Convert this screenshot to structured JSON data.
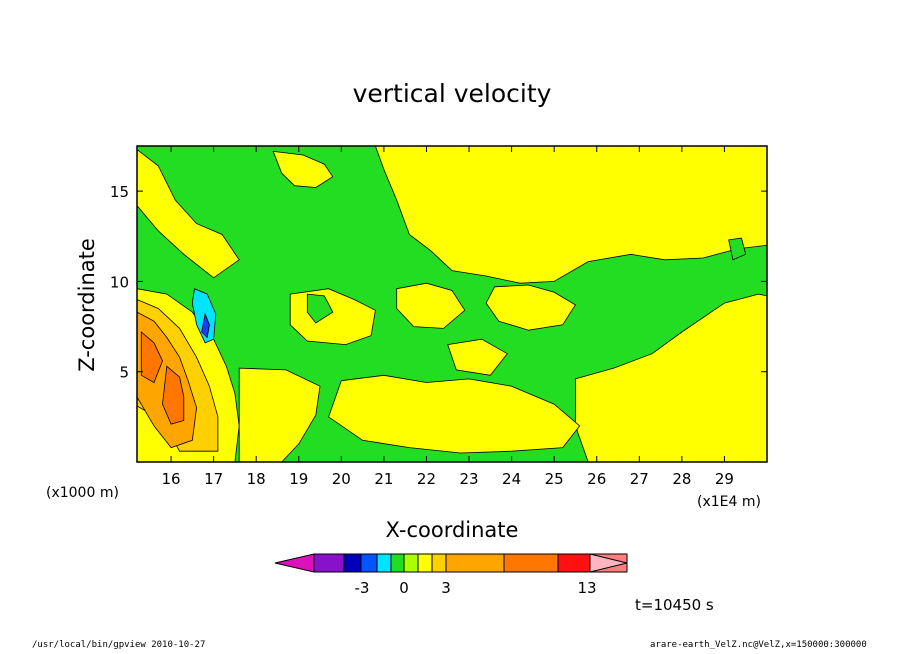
{
  "chart_data": {
    "type": "heatmap",
    "title": "vertical velocity",
    "xlabel": "X-coordinate",
    "ylabel": "Z-coordinate",
    "x_unit_left": "(x1000 m)",
    "x_unit_right": "(x1E4 m)",
    "xlim": [
      15.2,
      30.0
    ],
    "ylim": [
      0,
      17.5
    ],
    "x_ticks": [
      "16",
      "17",
      "18",
      "19",
      "20",
      "21",
      "22",
      "23",
      "24",
      "25",
      "26",
      "27",
      "28",
      "29"
    ],
    "x_tick_values": [
      16,
      17,
      18,
      19,
      20,
      21,
      22,
      23,
      24,
      25,
      26,
      27,
      28,
      29
    ],
    "y_ticks": [
      "5",
      "10",
      "15"
    ],
    "y_tick_values": [
      5,
      10,
      15
    ],
    "background_level_color": "#22dd22",
    "regions": [
      {
        "kind": "positive",
        "color": "#ffff00",
        "points": [
          [
            18.4,
            17.2
          ],
          [
            19.1,
            17.0
          ],
          [
            19.6,
            16.5
          ],
          [
            19.8,
            15.8
          ],
          [
            19.4,
            15.2
          ],
          [
            18.9,
            15.3
          ],
          [
            18.6,
            16.0
          ]
        ]
      },
      {
        "kind": "positive",
        "color": "#ffff00",
        "points": [
          [
            20.8,
            17.5
          ],
          [
            30.0,
            17.5
          ],
          [
            30.0,
            12.0
          ],
          [
            29.3,
            11.8
          ],
          [
            28.5,
            11.3
          ],
          [
            27.6,
            11.2
          ],
          [
            26.8,
            11.5
          ],
          [
            25.8,
            11.1
          ],
          [
            25.0,
            10.0
          ],
          [
            24.2,
            9.9
          ],
          [
            23.4,
            10.3
          ],
          [
            22.6,
            10.6
          ],
          [
            22.1,
            11.7
          ],
          [
            21.6,
            12.6
          ],
          [
            21.3,
            14.5
          ],
          [
            21.0,
            16.2
          ]
        ]
      },
      {
        "kind": "positive",
        "color": "#ffff00",
        "points": [
          [
            15.2,
            17.3
          ],
          [
            15.7,
            16.4
          ],
          [
            16.1,
            14.5
          ],
          [
            16.6,
            13.2
          ],
          [
            17.2,
            12.6
          ],
          [
            17.6,
            11.2
          ],
          [
            17.0,
            10.2
          ],
          [
            16.3,
            11.5
          ],
          [
            15.7,
            12.8
          ],
          [
            15.2,
            14.2
          ]
        ]
      },
      {
        "kind": "positive",
        "color": "#ffff00",
        "points": [
          [
            18.8,
            9.3
          ],
          [
            19.7,
            9.6
          ],
          [
            20.3,
            9.0
          ],
          [
            20.8,
            8.4
          ],
          [
            20.7,
            7.0
          ],
          [
            20.1,
            6.5
          ],
          [
            19.2,
            6.7
          ],
          [
            18.8,
            7.6
          ]
        ]
      },
      {
        "kind": "positive",
        "color": "#ffff00",
        "points": [
          [
            21.3,
            9.6
          ],
          [
            22.0,
            9.9
          ],
          [
            22.6,
            9.5
          ],
          [
            22.9,
            8.4
          ],
          [
            22.4,
            7.4
          ],
          [
            21.7,
            7.5
          ],
          [
            21.3,
            8.5
          ]
        ]
      },
      {
        "kind": "positive",
        "color": "#ffff00",
        "points": [
          [
            23.6,
            9.7
          ],
          [
            24.4,
            9.8
          ],
          [
            25.0,
            9.4
          ],
          [
            25.5,
            8.7
          ],
          [
            25.2,
            7.6
          ],
          [
            24.4,
            7.3
          ],
          [
            23.7,
            7.8
          ],
          [
            23.4,
            8.8
          ]
        ]
      },
      {
        "kind": "positive",
        "color": "#ffff00",
        "points": [
          [
            25.5,
            4.6
          ],
          [
            26.4,
            5.2
          ],
          [
            27.3,
            6.0
          ],
          [
            28.0,
            7.2
          ],
          [
            29.0,
            8.8
          ],
          [
            29.8,
            9.3
          ],
          [
            30.0,
            9.2
          ],
          [
            30.0,
            0.0
          ],
          [
            25.8,
            0.0
          ],
          [
            25.5,
            2.0
          ]
        ]
      },
      {
        "kind": "positive",
        "color": "#ffff00",
        "points": [
          [
            22.5,
            6.5
          ],
          [
            23.3,
            6.8
          ],
          [
            23.9,
            6.0
          ],
          [
            23.5,
            4.8
          ],
          [
            22.7,
            5.1
          ]
        ]
      },
      {
        "kind": "positive",
        "color": "#ffff00",
        "points": [
          [
            20.0,
            4.5
          ],
          [
            21.0,
            4.8
          ],
          [
            22.0,
            4.4
          ],
          [
            23.0,
            4.6
          ],
          [
            24.0,
            4.2
          ],
          [
            25.0,
            3.2
          ],
          [
            25.6,
            2.0
          ],
          [
            25.2,
            0.8
          ],
          [
            24.0,
            0.6
          ],
          [
            22.8,
            0.5
          ],
          [
            21.6,
            0.8
          ],
          [
            20.5,
            1.2
          ],
          [
            19.7,
            2.5
          ]
        ]
      },
      {
        "kind": "positive",
        "color": "#ffff00",
        "points": [
          [
            15.2,
            9.6
          ],
          [
            15.9,
            9.3
          ],
          [
            16.5,
            8.3
          ],
          [
            17.0,
            6.8
          ],
          [
            17.3,
            5.3
          ],
          [
            17.5,
            3.8
          ],
          [
            17.6,
            2.0
          ],
          [
            17.5,
            0.0
          ],
          [
            15.2,
            0.0
          ]
        ]
      },
      {
        "kind": "positive",
        "color": "#ffff00",
        "points": [
          [
            17.6,
            5.2
          ],
          [
            18.7,
            5.1
          ],
          [
            19.5,
            4.2
          ],
          [
            19.4,
            2.6
          ],
          [
            19.0,
            1.0
          ],
          [
            18.6,
            0.0
          ],
          [
            17.6,
            0.0
          ]
        ]
      },
      {
        "kind": "positive",
        "color": "#ffd000",
        "points": [
          [
            15.2,
            9.0
          ],
          [
            15.7,
            8.5
          ],
          [
            16.2,
            7.4
          ],
          [
            16.6,
            5.8
          ],
          [
            16.9,
            4.2
          ],
          [
            17.1,
            2.5
          ],
          [
            17.1,
            0.6
          ],
          [
            16.2,
            0.6
          ],
          [
            15.8,
            2.3
          ],
          [
            15.2,
            3.1
          ]
        ]
      },
      {
        "kind": "positive",
        "color": "#ffa500",
        "points": [
          [
            15.2,
            8.3
          ],
          [
            15.6,
            7.8
          ],
          [
            15.9,
            6.9
          ],
          [
            16.2,
            5.8
          ],
          [
            16.4,
            4.5
          ],
          [
            16.6,
            3.0
          ],
          [
            16.5,
            1.2
          ],
          [
            16.0,
            0.8
          ],
          [
            15.6,
            2.0
          ],
          [
            15.2,
            3.6
          ]
        ]
      },
      {
        "kind": "positive",
        "color": "#ff7700",
        "points": [
          [
            15.3,
            7.2
          ],
          [
            15.6,
            6.6
          ],
          [
            15.8,
            5.6
          ],
          [
            15.6,
            4.4
          ],
          [
            15.3,
            4.8
          ]
        ]
      },
      {
        "kind": "positive",
        "color": "#ff7700",
        "points": [
          [
            15.9,
            5.3
          ],
          [
            16.2,
            4.7
          ],
          [
            16.3,
            3.6
          ],
          [
            16.3,
            2.3
          ],
          [
            16.0,
            2.1
          ],
          [
            15.8,
            3.2
          ]
        ]
      },
      {
        "kind": "negative",
        "color": "#00e5ff",
        "points": [
          [
            16.55,
            9.6
          ],
          [
            16.85,
            9.3
          ],
          [
            17.05,
            8.2
          ],
          [
            17.0,
            6.8
          ],
          [
            16.8,
            6.6
          ],
          [
            16.6,
            7.6
          ],
          [
            16.5,
            8.8
          ]
        ]
      },
      {
        "kind": "negative",
        "color": "#1e3cff",
        "points": [
          [
            16.8,
            8.2
          ],
          [
            16.9,
            7.6
          ],
          [
            16.85,
            6.9
          ],
          [
            16.72,
            7.2
          ]
        ]
      },
      {
        "kind": "negative",
        "color": "#22dd22",
        "points": [
          [
            19.2,
            9.3
          ],
          [
            19.6,
            9.2
          ],
          [
            19.8,
            8.3
          ],
          [
            19.4,
            7.7
          ],
          [
            19.2,
            8.3
          ]
        ]
      },
      {
        "kind": "negative",
        "color": "#22dd22",
        "points": [
          [
            29.1,
            12.3
          ],
          [
            29.4,
            12.4
          ],
          [
            29.5,
            11.5
          ],
          [
            29.2,
            11.2
          ]
        ]
      }
    ],
    "colorbar": {
      "colors": [
        "#dd11bb",
        "#8811cc",
        "#0000bb",
        "#0055ff",
        "#00e5ff",
        "#22dd22",
        "#aaff00",
        "#ffff00",
        "#ffd000",
        "#ffa500",
        "#ff7700",
        "#ff1111",
        "#ff7f7f",
        "#ffb6c1"
      ],
      "labels": [
        "-3",
        "0",
        "3",
        "13"
      ]
    },
    "time_label": "t=10450 s"
  },
  "footer": {
    "left": "/usr/local/bin/gpview   2010-10-27",
    "right": "arare-earth_VelZ.nc@VelZ,x=150000:300000"
  }
}
